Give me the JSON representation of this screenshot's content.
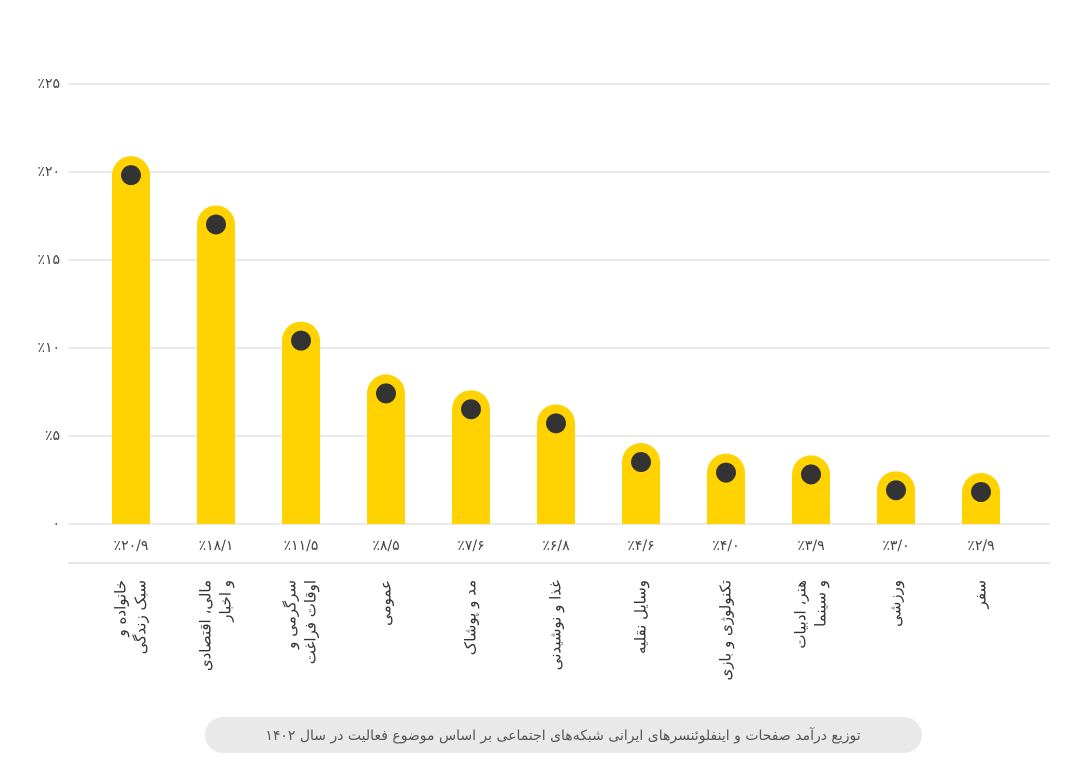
{
  "chart_data": {
    "type": "bar",
    "caption": "توزیع درآمد صفحات و اینفلوئنسرهای ایرانی شبکه‌های اجتماعی بر اساس موضوع فعالیت در سال ۱۴۰۲",
    "categories": [
      [
        "خانواده و",
        "سبک زندگی"
      ],
      [
        "مالی، اقتصادی",
        "و اخبار"
      ],
      [
        "سرگرمی و",
        "اوقات فراغت"
      ],
      [
        "عمومی"
      ],
      [
        "مد و پوشاک"
      ],
      [
        "غذا و نوشیدنی"
      ],
      [
        "وسایل نقلیه"
      ],
      [
        "تکنولوژی و بازی"
      ],
      [
        "هنر، ادبیات",
        "و سینما"
      ],
      [
        "ورزشی"
      ],
      [
        "سفر"
      ]
    ],
    "values": [
      20.9,
      18.1,
      11.5,
      8.5,
      7.6,
      6.8,
      4.6,
      4.0,
      3.9,
      3.0,
      2.9
    ],
    "value_labels": [
      "٪۲۰/۹",
      "٪۱۸/۱",
      "٪۱۱/۵",
      "٪۸/۵",
      "٪۷/۶",
      "٪۶/۸",
      "٪۴/۶",
      "٪۴/۰",
      "٪۳/۹",
      "٪۳/۰",
      "٪۲/۹"
    ],
    "color": "#ffd200",
    "marker_color": "#333333",
    "ylim": [
      0,
      25
    ],
    "yticks": [
      {
        "value": 0,
        "label": "۰"
      },
      {
        "value": 5,
        "label": "٪۵"
      },
      {
        "value": 10,
        "label": "٪۱۰"
      },
      {
        "value": 15,
        "label": "٪۱۵"
      },
      {
        "value": 20,
        "label": "٪۲۰"
      },
      {
        "value": 25,
        "label": "٪۲۵"
      }
    ],
    "grid": true
  }
}
